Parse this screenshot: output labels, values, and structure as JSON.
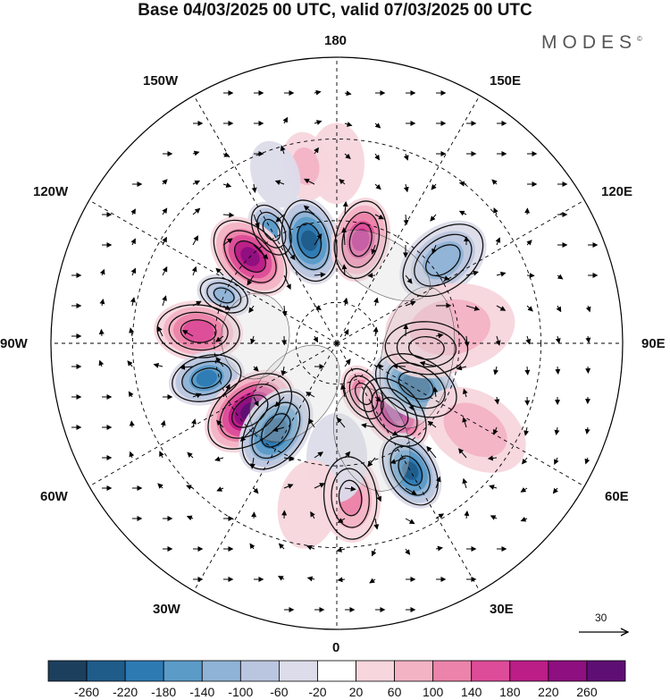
{
  "title": "Base 04/03/2025 00 UTC, valid 07/03/2025 00 UTC",
  "brand": "MODES",
  "brand_mark": "©",
  "longitude_labels": {
    "top": "180",
    "top_left": "150W",
    "top_right": "150E",
    "upper_left": "120W",
    "upper_right": "120E",
    "left": "90W",
    "right": "90E",
    "lower_left": "60W",
    "lower_right": "60E",
    "bottom_left": "30W",
    "bottom_right": "30E",
    "bottom": "0"
  },
  "wind_scale": {
    "value": "30"
  },
  "colorbar": {
    "ticks": [
      "-260",
      "-220",
      "-180",
      "-140",
      "-100",
      "-60",
      "-20",
      "20",
      "60",
      "100",
      "140",
      "180",
      "220",
      "260"
    ],
    "colors": [
      "#1d3f5e",
      "#1f5c8a",
      "#2d7ab3",
      "#5b9bc8",
      "#8fb3d6",
      "#bac6df",
      "#dcdcea",
      "#ffffff",
      "#f7d6dd",
      "#f3b3c4",
      "#ec83aa",
      "#dd4c98",
      "#bb1e86",
      "#8e0f7f",
      "#5e0f73"
    ]
  },
  "anomalies": [
    {
      "lon": -150,
      "colat": 32,
      "value": -140,
      "r": 26
    },
    {
      "lon": -165,
      "colat": 26,
      "value": -220,
      "r": 40
    },
    {
      "lon": 167,
      "colat": 26,
      "value": 180,
      "r": 38
    },
    {
      "lon": 128,
      "colat": 33,
      "value": -120,
      "r": 44
    },
    {
      "lon": -135,
      "colat": 30,
      "value": 220,
      "r": 42
    },
    {
      "lon": -113,
      "colat": 30,
      "value": -100,
      "r": 24
    },
    {
      "lon": -95,
      "colat": 34,
      "value": 150,
      "r": 40
    },
    {
      "lon": -75,
      "colat": 33,
      "value": -180,
      "r": 34
    },
    {
      "lon": -52,
      "colat": 27,
      "value": 260,
      "r": 46
    },
    {
      "lon": -35,
      "colat": 26,
      "value": -240,
      "r": 42
    },
    {
      "lon": 28,
      "colat": 14,
      "value": 120,
      "r": 26
    },
    {
      "lon": 40,
      "colat": 22,
      "value": 220,
      "r": 38
    },
    {
      "lon": 62,
      "colat": 22,
      "value": -250,
      "r": 42
    },
    {
      "lon": 87,
      "colat": 22,
      "value": 180,
      "r": 40
    },
    {
      "lon": 98,
      "colat": 28,
      "value": 80,
      "r": 60
    },
    {
      "lon": 30,
      "colat": 36,
      "value": -220,
      "r": 36
    },
    {
      "lon": 58,
      "colat": 40,
      "value": 80,
      "r": 50
    },
    {
      "lon": 5,
      "colat": 38,
      "value": 100,
      "r": 40
    },
    {
      "lon": 0,
      "colat": 28,
      "value": -40,
      "r": 40
    },
    {
      "lon": -10,
      "colat": 40,
      "value": 40,
      "r": 40
    },
    {
      "lon": 180,
      "colat": 44,
      "value": 40,
      "r": 36
    },
    {
      "lon": -170,
      "colat": 44,
      "value": 60,
      "r": 30
    },
    {
      "lon": -160,
      "colat": 44,
      "value": -40,
      "r": 30
    }
  ]
}
